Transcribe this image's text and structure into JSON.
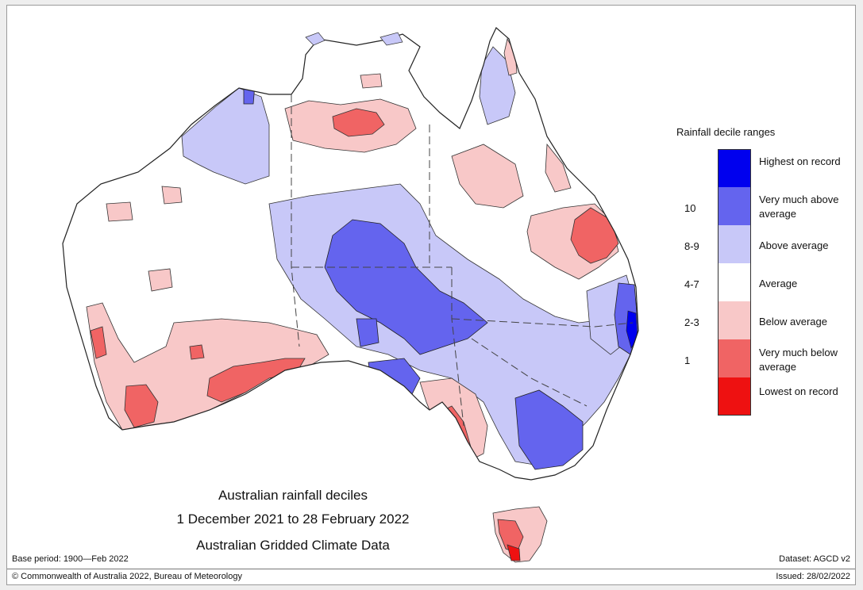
{
  "title": {
    "line1": "Australian rainfall deciles",
    "line2": "1 December 2021 to 28 February 2022",
    "line3": "Australian Gridded Climate Data"
  },
  "legend": {
    "title": "Rainfall decile ranges",
    "items": [
      {
        "label": "Highest on record",
        "decile": "",
        "color": "#0000ee"
      },
      {
        "label": "Very much above average",
        "decile": "10",
        "color": "#6464ee"
      },
      {
        "label": "Above average",
        "decile": "8-9",
        "color": "#c8c8f8"
      },
      {
        "label": "Average",
        "decile": "4-7",
        "color": "#ffffff"
      },
      {
        "label": "Below average",
        "decile": "2-3",
        "color": "#f8c8c8"
      },
      {
        "label": "Very much below average",
        "decile": "1",
        "color": "#f06464"
      },
      {
        "label": "Lowest on record",
        "decile": "",
        "color": "#ee1111"
      }
    ]
  },
  "base_period": "Base period: 1900—Feb 2022",
  "dataset": "Dataset: AGCD v2",
  "copyright": "© Commonwealth of Australia 2022, Bureau of Meteorology",
  "issued": "Issued: 28/02/2022"
}
